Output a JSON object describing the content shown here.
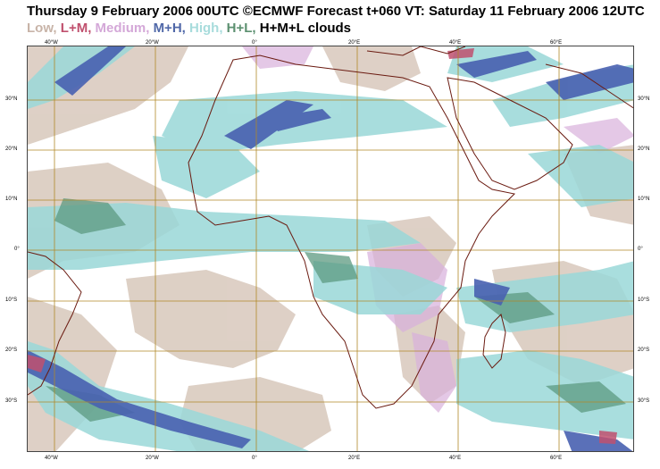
{
  "header": {
    "title": "Thursday 9 February 2006 00UTC ©ECMWF Forecast t+060 VT: Saturday 11 February 2006 12UTC"
  },
  "legend": {
    "items": [
      {
        "label": "Low,",
        "color": "#c8b4a8"
      },
      {
        "label": "L+M,",
        "color": "#c0506e"
      },
      {
        "label": "Medium,",
        "color": "#d4a8d8"
      },
      {
        "label": "M+H,",
        "color": "#5068a8"
      },
      {
        "label": "High,",
        "color": "#a8dcdc"
      },
      {
        "label": "H+L,",
        "color": "#5c9070"
      },
      {
        "label": "H+M+L clouds",
        "color": "#000000"
      }
    ]
  },
  "axes": {
    "lat_labels": [
      "30°N",
      "20°N",
      "10°N",
      "0°",
      "10°S",
      "20°S",
      "30°S"
    ],
    "lon_labels": [
      "40°W",
      "20°W",
      "0°",
      "20°E",
      "40°E",
      "60°E"
    ]
  },
  "colors": {
    "low": "#d8c8bc",
    "high": "#9ad8d8",
    "mh": "#4860b0",
    "hl": "#5c9a80",
    "medium": "#d8b0dc",
    "coast": "#6a1a10",
    "grid": "#b08828"
  }
}
